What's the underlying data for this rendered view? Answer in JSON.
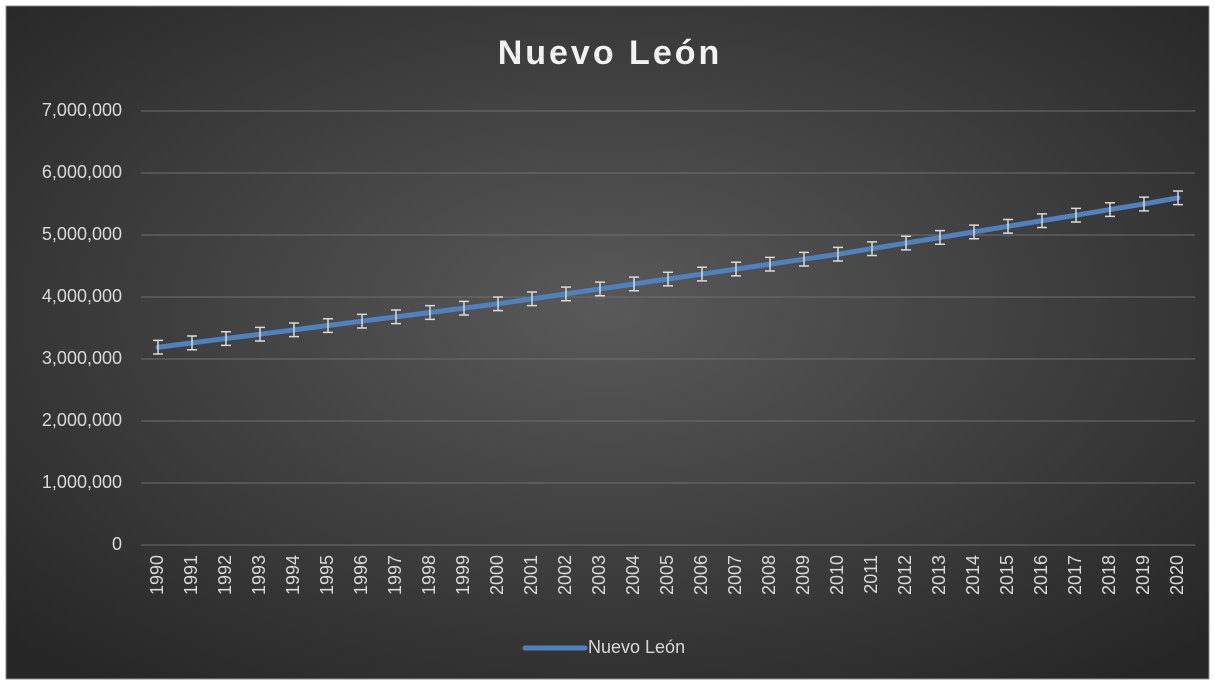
{
  "chart_data": {
    "type": "line",
    "title": "Nuevo León",
    "categories": [
      "1990",
      "1991",
      "1992",
      "1993",
      "1994",
      "1995",
      "1996",
      "1997",
      "1998",
      "1999",
      "2000",
      "2001",
      "2002",
      "2003",
      "2004",
      "2005",
      "2006",
      "2007",
      "2008",
      "2009",
      "2010",
      "2011",
      "2012",
      "2013",
      "2014",
      "2015",
      "2016",
      "2017",
      "2018",
      "2019",
      "2020"
    ],
    "series": [
      {
        "name": "Nuevo León",
        "color": "#4f81bd",
        "values": [
          3190000,
          3260000,
          3330000,
          3400000,
          3470000,
          3540000,
          3610000,
          3680000,
          3750000,
          3820000,
          3890000,
          3970000,
          4050000,
          4130000,
          4210000,
          4290000,
          4370000,
          4450000,
          4530000,
          4610000,
          4690000,
          4780000,
          4870000,
          4960000,
          5050000,
          5140000,
          5230000,
          5320000,
          5410000,
          5500000,
          5600000
        ],
        "errors": [
          110000,
          110000,
          110000,
          110000,
          110000,
          110000,
          110000,
          110000,
          110000,
          110000,
          110000,
          110000,
          110000,
          110000,
          110000,
          110000,
          110000,
          110000,
          110000,
          110000,
          110000,
          110000,
          110000,
          110000,
          110000,
          110000,
          110000,
          110000,
          110000,
          110000,
          110000
        ]
      }
    ],
    "ylim": [
      0,
      7000000
    ],
    "yticks": [
      0,
      {
        "value": 1000000,
        "label": "1,000,000"
      },
      {
        "value": 2000000,
        "label": "2,000,000"
      },
      {
        "value": 3000000,
        "label": "3,000,000"
      },
      {
        "value": 4000000,
        "label": "4,000,000"
      },
      {
        "value": 5000000,
        "label": "5,000,000"
      },
      {
        "value": 6000000,
        "label": "6,000,000"
      },
      {
        "value": 7000000,
        "label": "7,000,000"
      }
    ],
    "grid": true,
    "legend": "bottom"
  }
}
